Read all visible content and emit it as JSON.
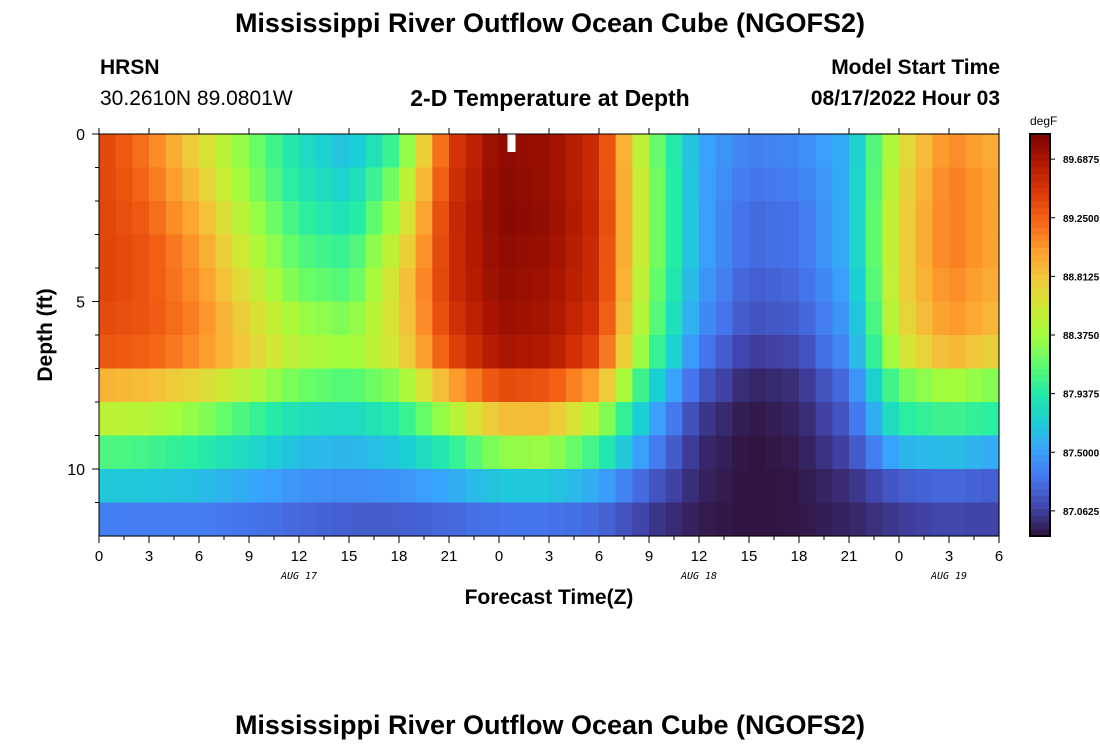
{
  "header": {
    "title": "Mississippi River Outflow Ocean Cube (NGOFS2)",
    "station": "HRSN",
    "coords": "30.2610N  89.0801W",
    "subtitle": "2-D Temperature at Depth",
    "model_start_label": "Model Start Time",
    "model_start_value": "08/17/2022 Hour 03"
  },
  "footer": {
    "title_repeat": "Mississippi River Outflow Ocean Cube (NGOFS2)"
  },
  "chart_data": {
    "type": "heatmap",
    "xlabel": "Forecast Time(Z)",
    "ylabel": "Depth (ft)",
    "x_tick_labels": [
      "0",
      "3",
      "6",
      "9",
      "12",
      "15",
      "18",
      "21",
      "0",
      "3",
      "6",
      "9",
      "12",
      "15",
      "18",
      "21",
      "0",
      "3",
      "6"
    ],
    "date_labels": [
      {
        "label": "AUG 17",
        "at_hour": 12
      },
      {
        "label": "AUG 18",
        "at_hour": 36
      },
      {
        "label": "AUG 19",
        "at_hour": 51
      }
    ],
    "y_tick_labels": [
      "0",
      "5",
      "10"
    ],
    "x_range_hours": [
      0,
      54
    ],
    "y_range_ft": [
      0,
      12
    ],
    "y_major_ticks": [
      0,
      5,
      10
    ],
    "colorbar": {
      "unit": "degF",
      "min": 86.875,
      "max": 89.875,
      "tick_labels": [
        "89.6875",
        "89.2500",
        "88.8125",
        "88.3750",
        "87.9375",
        "87.5000",
        "87.0625"
      ],
      "tick_values": [
        89.6875,
        89.25,
        88.8125,
        88.375,
        87.9375,
        87.5,
        87.0625
      ],
      "colormap": [
        "#30123b",
        "#4145ab",
        "#4675ed",
        "#39a2fc",
        "#1bcfd4",
        "#24eca6",
        "#61fc6c",
        "#a4fc3b",
        "#d1e834",
        "#f3c63a",
        "#fe9b2d",
        "#f36315",
        "#d93806",
        "#b11901",
        "#7a0402"
      ]
    },
    "depth_layers_ft": [
      0.5,
      1.5,
      2.5,
      3.5,
      4.5,
      5.5,
      6.5,
      7.5,
      8.5,
      9.5,
      10.5,
      11.5
    ],
    "time_hours": [
      0,
      3,
      6,
      9,
      12,
      15,
      18,
      21,
      24,
      27,
      30,
      33,
      36,
      39,
      42,
      45,
      48,
      51,
      54
    ],
    "series": [
      {
        "depth_ft": 0.5,
        "values": [
          89.4,
          89.15,
          88.7,
          88.25,
          87.85,
          87.65,
          88.1,
          89.4,
          89.8,
          89.75,
          89.5,
          88.3,
          87.55,
          87.35,
          87.4,
          87.6,
          88.6,
          89.1,
          88.9
        ]
      },
      {
        "depth_ft": 1.5,
        "values": [
          89.4,
          89.2,
          88.8,
          88.3,
          87.9,
          87.75,
          88.3,
          89.45,
          89.82,
          89.75,
          89.5,
          88.35,
          87.55,
          87.3,
          87.35,
          87.6,
          88.65,
          89.15,
          88.95
        ]
      },
      {
        "depth_ft": 2.5,
        "values": [
          89.4,
          89.25,
          88.9,
          88.4,
          88.0,
          87.85,
          88.45,
          89.5,
          89.82,
          89.78,
          89.52,
          88.35,
          87.55,
          87.25,
          87.3,
          87.6,
          88.7,
          89.15,
          88.95
        ]
      },
      {
        "depth_ft": 3.5,
        "values": [
          89.4,
          89.3,
          89.0,
          88.5,
          88.1,
          88.0,
          88.6,
          89.5,
          89.8,
          89.75,
          89.5,
          88.35,
          87.55,
          87.25,
          87.3,
          87.6,
          88.7,
          89.15,
          88.95
        ]
      },
      {
        "depth_ft": 4.5,
        "values": [
          89.4,
          89.3,
          89.05,
          88.6,
          88.2,
          88.1,
          88.7,
          89.5,
          89.78,
          89.72,
          89.5,
          88.3,
          87.5,
          87.2,
          87.25,
          87.55,
          88.7,
          89.1,
          88.9
        ]
      },
      {
        "depth_ft": 5.5,
        "values": [
          89.35,
          89.3,
          89.1,
          88.7,
          88.35,
          88.25,
          88.7,
          89.45,
          89.75,
          89.7,
          89.45,
          88.25,
          87.45,
          87.15,
          87.2,
          87.5,
          88.65,
          89.05,
          88.85
        ]
      },
      {
        "depth_ft": 6.5,
        "values": [
          89.3,
          89.25,
          89.05,
          88.75,
          88.45,
          88.35,
          88.65,
          89.35,
          89.7,
          89.65,
          89.35,
          88.15,
          87.35,
          87.05,
          87.1,
          87.45,
          88.55,
          88.9,
          88.7
        ]
      },
      {
        "depth_ft": 7.5,
        "values": [
          88.9,
          88.85,
          88.7,
          88.45,
          88.2,
          88.1,
          88.3,
          88.95,
          89.35,
          89.3,
          88.95,
          87.85,
          87.2,
          86.95,
          87.0,
          87.3,
          88.2,
          88.4,
          88.25
        ]
      },
      {
        "depth_ft": 8.5,
        "values": [
          88.5,
          88.45,
          88.3,
          88.05,
          87.85,
          87.8,
          87.95,
          88.4,
          88.85,
          88.85,
          88.4,
          87.6,
          87.05,
          86.9,
          86.95,
          87.2,
          87.95,
          88.05,
          87.95
        ]
      },
      {
        "depth_ft": 9.5,
        "values": [
          88.1,
          88.05,
          87.95,
          87.8,
          87.65,
          87.6,
          87.7,
          87.95,
          88.3,
          88.35,
          88.0,
          87.4,
          86.98,
          86.88,
          86.92,
          87.1,
          87.6,
          87.65,
          87.55
        ]
      },
      {
        "depth_ft": 10.5,
        "values": [
          87.7,
          87.7,
          87.65,
          87.55,
          87.45,
          87.4,
          87.45,
          87.55,
          87.7,
          87.7,
          87.55,
          87.2,
          86.95,
          86.88,
          86.9,
          87.0,
          87.2,
          87.25,
          87.2
        ]
      },
      {
        "depth_ft": 11.5,
        "values": [
          87.35,
          87.35,
          87.35,
          87.3,
          87.25,
          87.2,
          87.2,
          87.25,
          87.3,
          87.3,
          87.25,
          87.05,
          86.92,
          86.88,
          86.9,
          86.95,
          87.05,
          87.1,
          87.08
        ]
      }
    ],
    "marker": {
      "label": "current time",
      "at_hour": 24.75
    }
  }
}
